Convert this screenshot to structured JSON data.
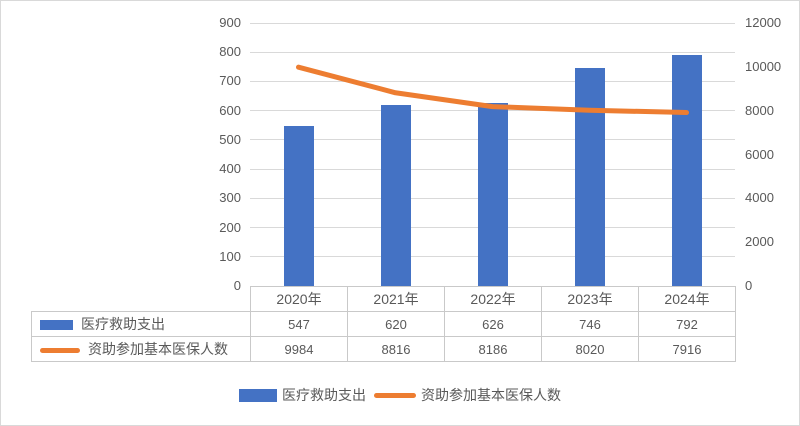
{
  "colors": {
    "bar": "#4472C4",
    "line": "#ED7D31",
    "text": "#595959",
    "grid": "#D9D9D9",
    "table_border": "#C9C9C9",
    "background": "#FFFFFF"
  },
  "chart_data": {
    "type": "bar",
    "subtype": "combo-bar-line-dual-axis",
    "title": "",
    "categories": [
      "2020年",
      "2021年",
      "2022年",
      "2023年",
      "2024年"
    ],
    "series": [
      {
        "name": "医疗救助支出",
        "type": "bar",
        "axis": "left",
        "values": [
          547,
          620,
          626,
          746,
          792
        ],
        "color": "#4472C4"
      },
      {
        "name": "资助参加基本医保人数",
        "type": "line",
        "axis": "right",
        "values": [
          9984,
          8816,
          8186,
          8020,
          7916
        ],
        "color": "#ED7D31"
      }
    ],
    "left_axis": {
      "min": 0,
      "max": 900,
      "step": 100,
      "ticks": [
        0,
        100,
        200,
        300,
        400,
        500,
        600,
        700,
        800,
        900
      ]
    },
    "right_axis": {
      "min": 0,
      "max": 12000,
      "step": 2000,
      "ticks": [
        0,
        2000,
        4000,
        6000,
        8000,
        10000,
        12000
      ]
    },
    "grid": true,
    "legend_position": "bottom",
    "data_table_visible": true
  }
}
